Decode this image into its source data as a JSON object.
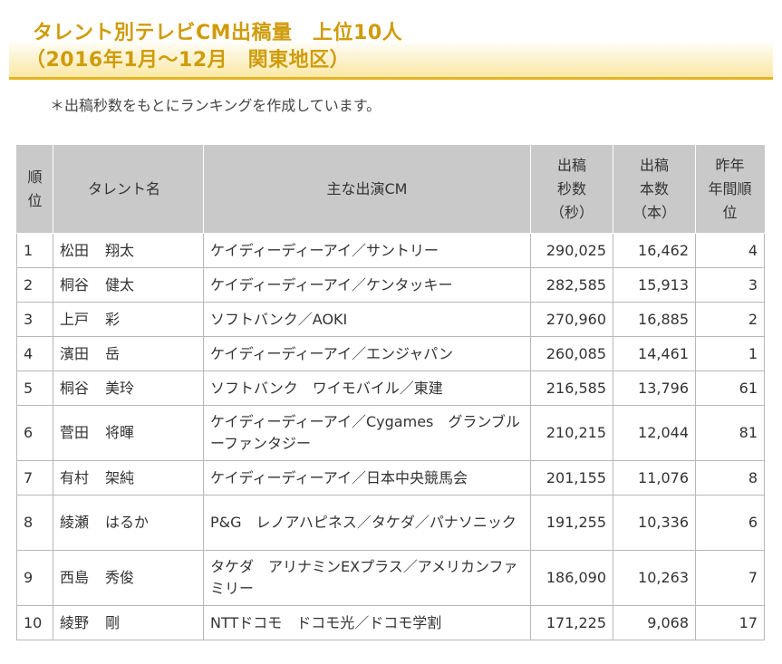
{
  "title": {
    "line1": "タレント別テレビCM出稿量　上位10人",
    "line2": "（2016年1月～12月　関東地区）"
  },
  "note": "＊出稿秒数をもとにランキングを作成しています。",
  "table": {
    "headers": {
      "rank": [
        "順",
        "位"
      ],
      "talent": "タレント名",
      "cm": "主な出演CM",
      "seconds": [
        "出稿",
        "秒数",
        "（秒）"
      ],
      "count": [
        "出稿",
        "本数",
        "（本）"
      ],
      "prev_rank": [
        "昨年",
        "年間順",
        "位"
      ]
    },
    "rows": [
      {
        "rank": "1",
        "name_last": "松田",
        "name_first": "翔太",
        "cm": "ケイディーディーアイ／サントリー",
        "seconds": "290,025",
        "count": "16,462",
        "prev": "4"
      },
      {
        "rank": "2",
        "name_last": "桐谷",
        "name_first": "健太",
        "cm": "ケイディーディーアイ／ケンタッキー",
        "seconds": "282,585",
        "count": "15,913",
        "prev": "3"
      },
      {
        "rank": "3",
        "name_last": "上戸",
        "name_first": "彩",
        "cm": "ソフトバンク／AOKI",
        "seconds": "270,960",
        "count": "16,885",
        "prev": "2"
      },
      {
        "rank": "4",
        "name_last": "濱田",
        "name_first": "岳",
        "cm": "ケイディーディーアイ／エンジャパン",
        "seconds": "260,085",
        "count": "14,461",
        "prev": "1"
      },
      {
        "rank": "5",
        "name_last": "桐谷",
        "name_first": "美玲",
        "cm": "ソフトバンク　ワイモバイル／東建",
        "seconds": "216,585",
        "count": "13,796",
        "prev": "61"
      },
      {
        "rank": "6",
        "name_last": "菅田",
        "name_first": "将暉",
        "cm": "ケイディーディーアイ／Cygames　グランブルーファンタジー",
        "seconds": "210,215",
        "count": "12,044",
        "prev": "81"
      },
      {
        "rank": "7",
        "name_last": "有村",
        "name_first": "架純",
        "cm": "ケイディーディーアイ／日本中央競馬会",
        "seconds": "201,155",
        "count": "11,076",
        "prev": "8"
      },
      {
        "rank": "8",
        "name_last": "綾瀬",
        "name_first": "はるか",
        "cm": "P&G　レノアハピネス／タケダ／パナソニック",
        "seconds": "191,255",
        "count": "10,336",
        "prev": "6"
      },
      {
        "rank": "9",
        "name_last": "西島",
        "name_first": "秀俊",
        "cm": "タケダ　アリナミンEXプラス／アメリカンファミリー",
        "seconds": "186,090",
        "count": "10,263",
        "prev": "7"
      },
      {
        "rank": "10",
        "name_last": "綾野",
        "name_first": "剛",
        "cm": "NTTドコモ　ドコモ光／ドコモ学割",
        "seconds": "171,225",
        "count": "9,068",
        "prev": "17"
      }
    ]
  }
}
